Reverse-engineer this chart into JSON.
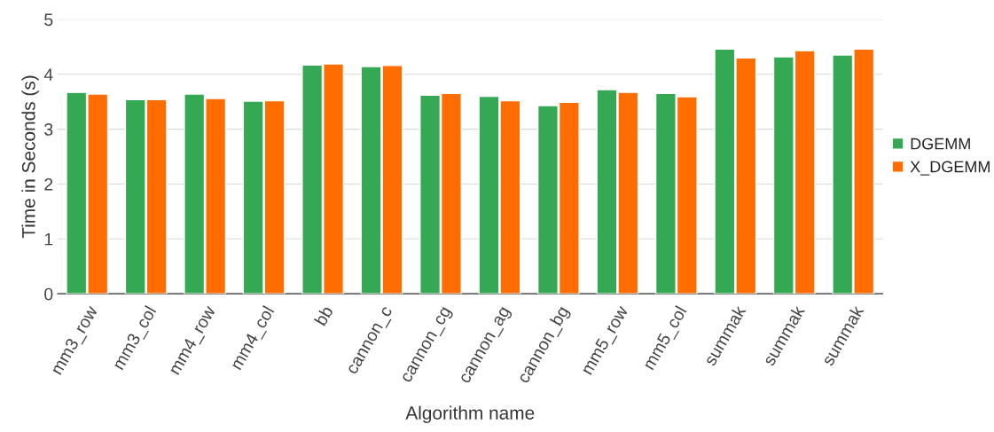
{
  "chart_data": {
    "type": "bar",
    "xlabel": "Algorithm name",
    "ylabel": "Time in Seconds (s)",
    "categories": [
      "mm3_row",
      "mm3_col",
      "mm4_row",
      "mm4_col",
      "bb",
      "cannon_c",
      "cannon_cg",
      "cannon_ag",
      "cannon_bg",
      "mm5_row",
      "mm5_col",
      "summak",
      "summak",
      "summak"
    ],
    "series": [
      {
        "name": "DGEMM",
        "color": "#34a853",
        "values": [
          3.67,
          3.54,
          3.64,
          3.51,
          4.17,
          4.14,
          3.62,
          3.6,
          3.43,
          3.72,
          3.65,
          4.46,
          4.32,
          4.35
        ]
      },
      {
        "name": "X_DGEMM",
        "color": "#ff6d01",
        "values": [
          3.64,
          3.54,
          3.56,
          3.52,
          4.19,
          4.16,
          3.65,
          3.52,
          3.49,
          3.67,
          3.59,
          4.3,
          4.43,
          4.46
        ]
      }
    ],
    "ylim": [
      0,
      5
    ],
    "yticks": [
      0,
      1,
      2,
      3,
      4,
      5
    ],
    "grid": "y",
    "legend": "right"
  }
}
